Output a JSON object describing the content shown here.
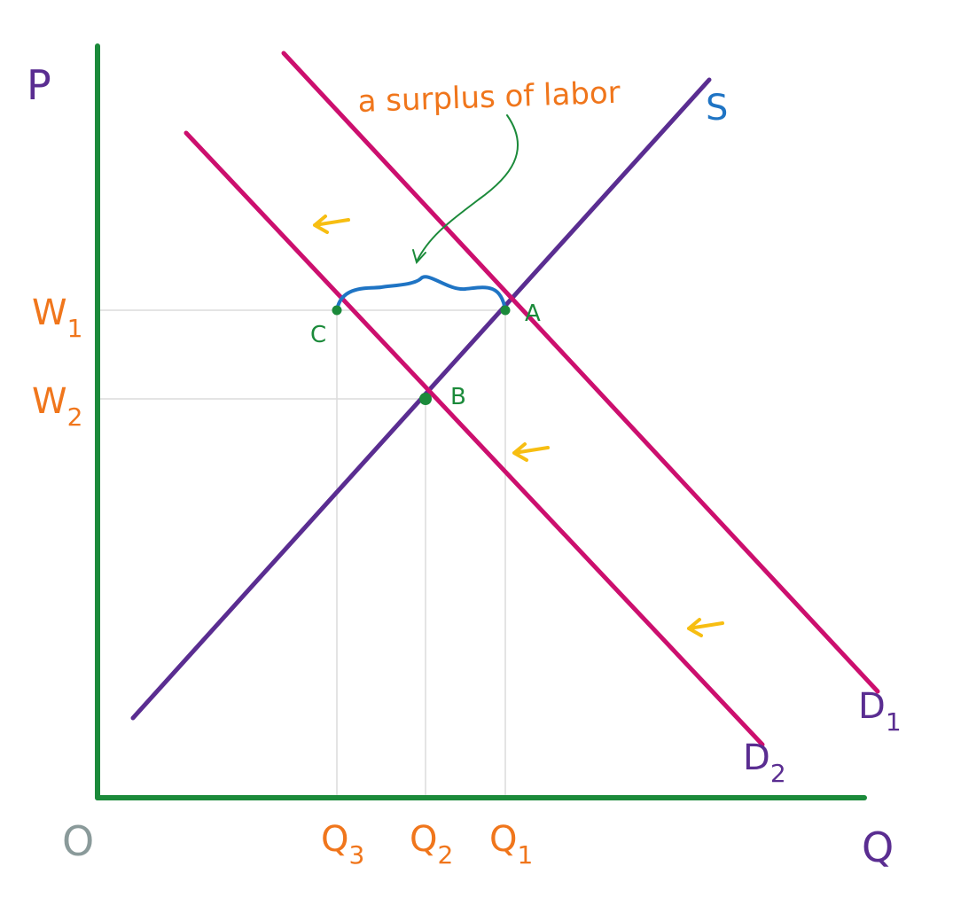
{
  "colors": {
    "axis": "#1b8a3a",
    "supply": "#5a2d91",
    "demand": "#cc0f6e",
    "guide": "#dcdcdc",
    "label_orange": "#f0761c",
    "label_purple": "#5a2d91",
    "label_blue": "#1f74c4",
    "label_gray": "#8a9a9a",
    "point_green": "#1b8a3a",
    "bracket_blue": "#1f74c4",
    "shift_arrow": "#f7be12"
  },
  "chart_data": {
    "type": "line",
    "title": "",
    "xlabel": "Q",
    "ylabel": "P",
    "origin_label": "O",
    "xlim": [
      0,
      9
    ],
    "ylim": [
      0,
      9
    ],
    "grid": false,
    "series": [
      {
        "name": "S",
        "points": [
          [
            0.4,
            0.9
          ],
          [
            6.9,
            8.1
          ]
        ]
      },
      {
        "name": "D1",
        "points": [
          [
            2.1,
            8.4
          ],
          [
            8.8,
            1.2
          ]
        ]
      },
      {
        "name": "D2",
        "points": [
          [
            1.0,
            7.5
          ],
          [
            7.5,
            0.6
          ]
        ]
      }
    ],
    "points": [
      {
        "label": "A",
        "x": 4.6,
        "y": 5.5
      },
      {
        "label": "B",
        "x": 3.7,
        "y": 4.5
      },
      {
        "label": "C",
        "x": 2.7,
        "y": 5.5
      }
    ],
    "x_ticks": [
      {
        "label_main": "Q",
        "label_sub": "3",
        "value": 2.7
      },
      {
        "label_main": "Q",
        "label_sub": "2",
        "value": 3.7
      },
      {
        "label_main": "Q",
        "label_sub": "1",
        "value": 4.6
      }
    ],
    "y_ticks": [
      {
        "label_main": "W",
        "label_sub": "1",
        "value": 5.5
      },
      {
        "label_main": "W",
        "label_sub": "2",
        "value": 4.5
      }
    ],
    "curve_labels": [
      {
        "series": "S",
        "main": "S",
        "sub": ""
      },
      {
        "series": "D1",
        "main": "D",
        "sub": "1"
      },
      {
        "series": "D2",
        "main": "D",
        "sub": "2"
      }
    ],
    "annotation": "a surplus of labor"
  }
}
